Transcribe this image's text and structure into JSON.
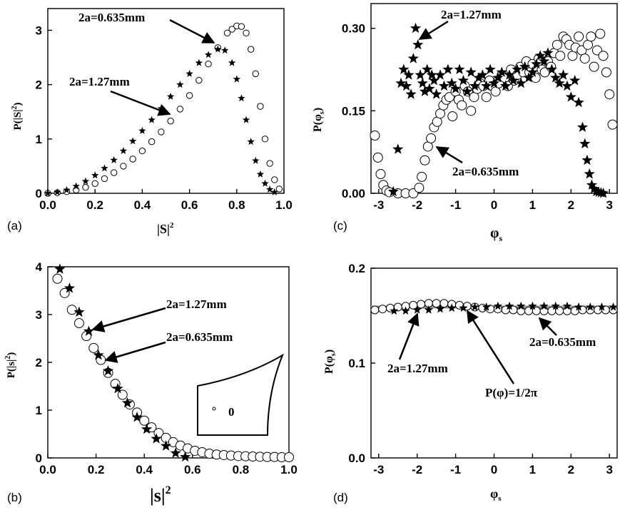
{
  "chart_data": [
    {
      "panel": "(a)",
      "type": "scatter",
      "xlabel": "|S|²",
      "ylabel": "P(|S|²)",
      "xlim": [
        0.0,
        1.0
      ],
      "ylim": [
        0,
        3.4
      ],
      "xticks": [
        "0.0",
        "0.2",
        "0.4",
        "0.6",
        "0.8",
        "1.0"
      ],
      "yticks": [
        "0",
        "1",
        "2",
        "3"
      ],
      "series": [
        {
          "name": "2a=0.635mm",
          "marker": "circle",
          "x": [
            0.0,
            0.04,
            0.08,
            0.12,
            0.16,
            0.2,
            0.24,
            0.28,
            0.32,
            0.36,
            0.4,
            0.44,
            0.48,
            0.52,
            0.56,
            0.6,
            0.64,
            0.68,
            0.72,
            0.76,
            0.78,
            0.8,
            0.82,
            0.84,
            0.86,
            0.88,
            0.9,
            0.92,
            0.94,
            0.96,
            0.98
          ],
          "y": [
            0.0,
            0.01,
            0.03,
            0.06,
            0.11,
            0.18,
            0.27,
            0.38,
            0.5,
            0.63,
            0.78,
            0.95,
            1.13,
            1.33,
            1.55,
            1.8,
            2.08,
            2.38,
            2.68,
            2.95,
            3.02,
            3.08,
            3.07,
            2.95,
            2.65,
            2.2,
            1.6,
            1.0,
            0.55,
            0.25,
            0.08
          ]
        },
        {
          "name": "2a=1.27mm",
          "marker": "star",
          "x": [
            0.0,
            0.04,
            0.08,
            0.12,
            0.16,
            0.2,
            0.24,
            0.28,
            0.32,
            0.36,
            0.4,
            0.44,
            0.48,
            0.52,
            0.56,
            0.6,
            0.64,
            0.68,
            0.72,
            0.75,
            0.78,
            0.8,
            0.82,
            0.84,
            0.86,
            0.88,
            0.9,
            0.92,
            0.94,
            0.96
          ],
          "y": [
            0.0,
            0.02,
            0.06,
            0.13,
            0.22,
            0.33,
            0.46,
            0.61,
            0.78,
            0.96,
            1.15,
            1.35,
            1.56,
            1.78,
            2.0,
            2.2,
            2.4,
            2.55,
            2.65,
            2.63,
            2.4,
            2.1,
            1.75,
            1.35,
            0.95,
            0.6,
            0.35,
            0.18,
            0.07,
            0.02
          ]
        }
      ],
      "annotations": [
        "2a=0.635mm",
        "2a=1.27mm"
      ]
    },
    {
      "panel": "(b)",
      "type": "scatter",
      "xlabel": "|s|²",
      "ylabel": "P(|s|²)",
      "xlim": [
        0.0,
        1.0
      ],
      "ylim": [
        0,
        4
      ],
      "xticks": [
        "0.0",
        "0.2",
        "0.4",
        "0.6",
        "0.8",
        "1.0"
      ],
      "yticks": [
        "0",
        "1",
        "2",
        "3",
        "4"
      ],
      "series": [
        {
          "name": "2a=0.635mm",
          "marker": "circle",
          "x": [
            0.04,
            0.07,
            0.1,
            0.13,
            0.16,
            0.19,
            0.22,
            0.25,
            0.28,
            0.31,
            0.34,
            0.37,
            0.4,
            0.43,
            0.46,
            0.49,
            0.52,
            0.55,
            0.58,
            0.61,
            0.64,
            0.67,
            0.7,
            0.73,
            0.76,
            0.79,
            0.82,
            0.85,
            0.88,
            0.91,
            0.94,
            0.97,
            1.0
          ],
          "y": [
            3.75,
            3.45,
            3.1,
            2.82,
            2.55,
            2.3,
            2.05,
            1.78,
            1.55,
            1.32,
            1.12,
            0.95,
            0.78,
            0.64,
            0.52,
            0.42,
            0.33,
            0.26,
            0.2,
            0.15,
            0.12,
            0.09,
            0.07,
            0.06,
            0.05,
            0.04,
            0.035,
            0.03,
            0.025,
            0.02,
            0.02,
            0.015,
            0.015
          ]
        },
        {
          "name": "2a=1.27mm",
          "marker": "star",
          "x": [
            0.05,
            0.09,
            0.13,
            0.17,
            0.21,
            0.25,
            0.29,
            0.33,
            0.37,
            0.41,
            0.45,
            0.49,
            0.53,
            0.57
          ],
          "y": [
            3.95,
            3.55,
            3.05,
            2.65,
            2.15,
            1.82,
            1.45,
            1.15,
            0.85,
            0.6,
            0.4,
            0.25,
            0.1,
            0.02
          ]
        }
      ],
      "annotations": [
        "2a=1.27mm",
        "2a=0.635mm"
      ],
      "inset_label": "0"
    },
    {
      "panel": "(c)",
      "type": "scatter",
      "xlabel": "φs",
      "ylabel": "P(φs)",
      "xlim": [
        -3.2,
        3.2
      ],
      "ylim": [
        0,
        0.345
      ],
      "xticks": [
        "-3",
        "-2",
        "-1",
        "0",
        "1",
        "2",
        "3"
      ],
      "yticks": [
        "0.00",
        "0.15",
        "0.30"
      ],
      "series": [
        {
          "name": "2a=0.635mm",
          "marker": "circle",
          "x": [
            -3.1,
            -3.02,
            -2.95,
            -2.88,
            -2.8,
            -2.72,
            -2.5,
            -2.3,
            -2.1,
            -1.95,
            -1.88,
            -1.8,
            -1.72,
            -1.64,
            -1.56,
            -1.48,
            -1.4,
            -1.32,
            -1.24,
            -1.16,
            -1.08,
            -1.0,
            -0.92,
            -0.84,
            -0.76,
            -0.68,
            -0.6,
            -0.52,
            -0.44,
            -0.36,
            -0.28,
            -0.2,
            -0.12,
            -0.04,
            0.04,
            0.12,
            0.2,
            0.28,
            0.36,
            0.44,
            0.52,
            0.6,
            0.68,
            0.76,
            0.84,
            0.92,
            1.0,
            1.08,
            1.16,
            1.24,
            1.32,
            1.4,
            1.48,
            1.56,
            1.64,
            1.72,
            1.8,
            1.88,
            1.96,
            2.04,
            2.12,
            2.2,
            2.28,
            2.36,
            2.44,
            2.52,
            2.6,
            2.68,
            2.76,
            2.84,
            2.92,
            3.0,
            3.08
          ],
          "y": [
            0.105,
            0.065,
            0.035,
            0.015,
            0.005,
            0.002,
            0.0,
            0.0,
            0.0,
            0.01,
            0.03,
            0.06,
            0.085,
            0.1,
            0.12,
            0.13,
            0.145,
            0.16,
            0.17,
            0.175,
            0.14,
            0.185,
            0.17,
            0.16,
            0.195,
            0.185,
            0.15,
            0.175,
            0.19,
            0.2,
            0.195,
            0.175,
            0.205,
            0.195,
            0.185,
            0.2,
            0.215,
            0.21,
            0.195,
            0.225,
            0.205,
            0.215,
            0.23,
            0.22,
            0.24,
            0.22,
            0.235,
            0.21,
            0.245,
            0.225,
            0.22,
            0.24,
            0.23,
            0.255,
            0.27,
            0.25,
            0.285,
            0.28,
            0.27,
            0.25,
            0.265,
            0.285,
            0.26,
            0.245,
            0.27,
            0.285,
            0.23,
            0.26,
            0.29,
            0.25,
            0.22,
            0.18,
            0.125
          ]
        },
        {
          "name": "2a=1.27mm",
          "marker": "star",
          "x": [
            -2.62,
            -2.5,
            -2.42,
            -2.35,
            -2.28,
            -2.22,
            -2.16,
            -2.1,
            -2.04,
            -1.98,
            -1.92,
            -1.86,
            -1.8,
            -1.74,
            -1.68,
            -1.62,
            -1.56,
            -1.5,
            -1.4,
            -1.3,
            -1.2,
            -1.1,
            -1.0,
            -0.9,
            -0.8,
            -0.7,
            -0.6,
            -0.5,
            -0.4,
            -0.3,
            -0.2,
            -0.1,
            0.0,
            0.1,
            0.2,
            0.3,
            0.4,
            0.5,
            0.6,
            0.7,
            0.8,
            0.9,
            1.0,
            1.1,
            1.2,
            1.3,
            1.4,
            1.5,
            1.6,
            1.7,
            1.8,
            1.9,
            2.0,
            2.1,
            2.2,
            2.3,
            2.36,
            2.42,
            2.48,
            2.54,
            2.6,
            2.66,
            2.72,
            2.78,
            2.84
          ],
          "y": [
            0.003,
            0.08,
            0.2,
            0.225,
            0.195,
            0.215,
            0.18,
            0.245,
            0.3,
            0.27,
            0.215,
            0.2,
            0.185,
            0.225,
            0.19,
            0.215,
            0.205,
            0.18,
            0.215,
            0.195,
            0.225,
            0.2,
            0.19,
            0.225,
            0.205,
            0.185,
            0.22,
            0.195,
            0.21,
            0.215,
            0.195,
            0.225,
            0.2,
            0.21,
            0.22,
            0.195,
            0.215,
            0.205,
            0.225,
            0.2,
            0.23,
            0.21,
            0.22,
            0.235,
            0.25,
            0.24,
            0.255,
            0.225,
            0.21,
            0.2,
            0.215,
            0.195,
            0.175,
            0.205,
            0.165,
            0.12,
            0.09,
            0.06,
            0.035,
            0.015,
            0.008,
            0.003,
            0.002,
            0.001,
            0.0
          ]
        }
      ],
      "annotations": [
        "2a=1.27mm",
        "2a=0.635mm"
      ]
    },
    {
      "panel": "(d)",
      "type": "scatter",
      "xlabel": "φs",
      "ylabel": "P(φs)",
      "xlim": [
        -3.2,
        3.2
      ],
      "ylim": [
        0,
        0.2
      ],
      "xticks": [
        "-3",
        "-2",
        "-1",
        "0",
        "1",
        "2",
        "3"
      ],
      "yticks": [
        "0.0",
        "0.1",
        "0.2"
      ],
      "series": [
        {
          "name": "2a=0.635mm",
          "marker": "circle",
          "x": [
            -3.1,
            -2.9,
            -2.7,
            -2.5,
            -2.3,
            -2.1,
            -1.9,
            -1.7,
            -1.5,
            -1.3,
            -1.1,
            -0.9,
            -0.7,
            -0.5,
            -0.3,
            -0.1,
            0.1,
            0.3,
            0.5,
            0.7,
            0.9,
            1.1,
            1.3,
            1.5,
            1.7,
            1.9,
            2.1,
            2.3,
            2.5,
            2.7,
            2.9,
            3.1
          ],
          "y": [
            0.156,
            0.157,
            0.158,
            0.159,
            0.16,
            0.161,
            0.162,
            0.163,
            0.163,
            0.163,
            0.162,
            0.161,
            0.16,
            0.159,
            0.158,
            0.157,
            0.157,
            0.156,
            0.156,
            0.155,
            0.155,
            0.155,
            0.155,
            0.155,
            0.155,
            0.155,
            0.155,
            0.156,
            0.156,
            0.156,
            0.156,
            0.156
          ]
        },
        {
          "name": "2a=1.27mm",
          "marker": "star",
          "x": [
            -2.6,
            -2.3,
            -2.0,
            -1.7,
            -1.4,
            -1.1,
            -0.8,
            -0.5,
            -0.2,
            0.1,
            0.4,
            0.7,
            1.0,
            1.3,
            1.6,
            1.9,
            2.2,
            2.5,
            2.8,
            3.1
          ],
          "y": [
            0.155,
            0.155,
            0.156,
            0.156,
            0.157,
            0.158,
            0.158,
            0.159,
            0.159,
            0.16,
            0.16,
            0.16,
            0.16,
            0.16,
            0.16,
            0.16,
            0.159,
            0.159,
            0.159,
            0.159
          ]
        }
      ],
      "reference_line": {
        "label": "P(φ)=1/2π",
        "y": 0.159,
        "color": "#999999"
      },
      "annotations": [
        "2a=1.27mm",
        "P(φ)=1/2π",
        "2a=0.635mm"
      ]
    }
  ],
  "labels": {
    "a": {
      "panel": "(a)",
      "x_main": "|S|",
      "x_sup": "2",
      "y_main": "P(|S|",
      "y_sup": "2",
      "y_tail": ")",
      "anno1": "2a=0.635mm",
      "anno2": "2a=1.27mm"
    },
    "b": {
      "panel": "(b)",
      "x_main": "|s|",
      "x_sup": "2",
      "y_main": "P(|s|",
      "y_sup": "2",
      "y_tail": ")",
      "anno1": "2a=1.27mm",
      "anno2": "2a=0.635mm",
      "inset": "0"
    },
    "c": {
      "panel": "(c)",
      "x_main": "φ",
      "x_sub": "s",
      "y_main": "P(φ",
      "y_sub": "s",
      "y_tail": ")",
      "anno1": "2a=1.27mm",
      "anno2": "2a=0.635mm"
    },
    "d": {
      "panel": "(d)",
      "x_main": "φ",
      "x_sub": "s",
      "y_main": "P(φ",
      "y_sub": "s",
      "y_tail": ")",
      "anno1": "2a=1.27mm",
      "anno2": "P(φ)=1/2π",
      "anno3": "2a=0.635mm"
    }
  }
}
